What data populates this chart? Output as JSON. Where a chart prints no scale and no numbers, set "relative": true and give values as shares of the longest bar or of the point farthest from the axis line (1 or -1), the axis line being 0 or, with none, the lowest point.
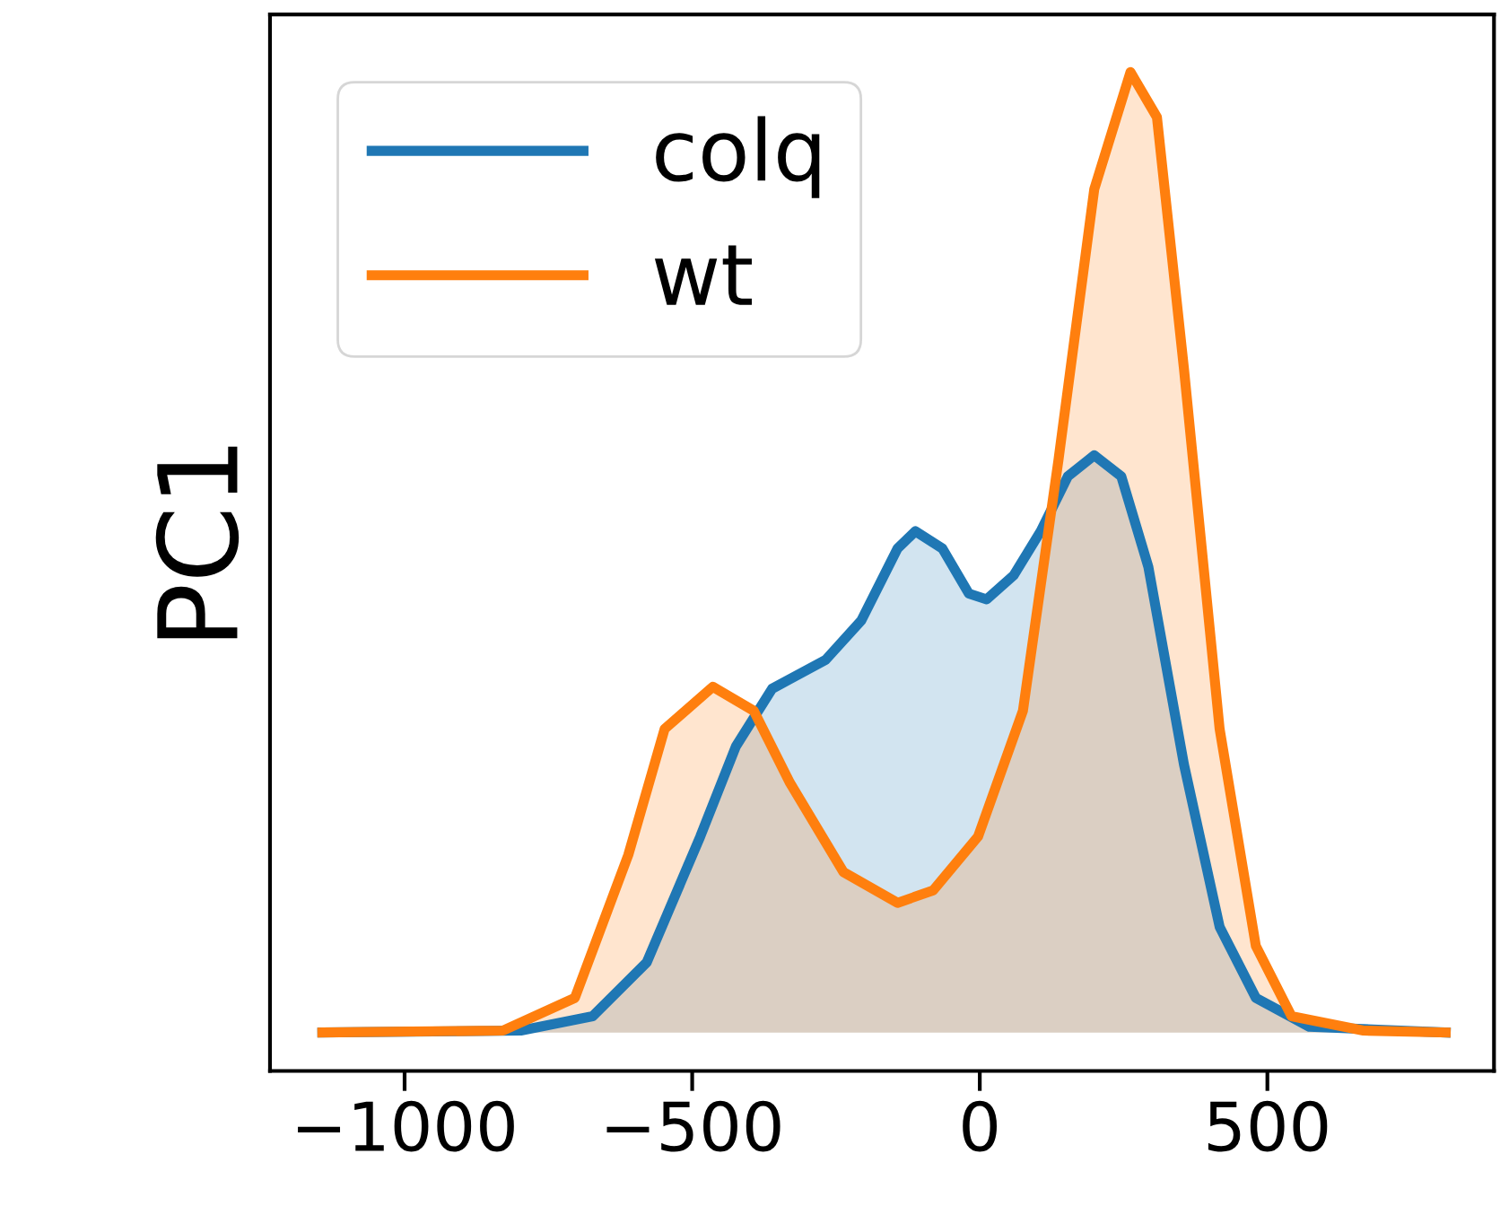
{
  "chart_data": {
    "type": "area",
    "ylabel": "PC1",
    "relative": true,
    "tick_labels": "x",
    "legend": "top left",
    "grid": false,
    "xlim": [
      -1234,
      894
    ],
    "xticks": [
      {
        "value": -1000,
        "label": "−1000"
      },
      {
        "value": -500,
        "label": "−500"
      },
      0,
      500
    ],
    "series": [
      {
        "name": "colq",
        "color": "#1f77b4",
        "x": [
          -1143,
          -798,
          -673,
          -579,
          -486,
          -424,
          -361,
          -268,
          -206,
          -143,
          -112,
          -65,
          -19,
          12,
          59,
          106,
          153,
          199,
          246,
          293,
          355,
          417,
          480,
          573,
          810
        ],
        "values": [
          0,
          0.002,
          0.017,
          0.073,
          0.204,
          0.298,
          0.358,
          0.388,
          0.429,
          0.504,
          0.522,
          0.504,
          0.457,
          0.451,
          0.476,
          0.522,
          0.579,
          0.601,
          0.579,
          0.485,
          0.279,
          0.11,
          0.036,
          0.006,
          0
        ]
      },
      {
        "name": "wt",
        "color": "#ff7f0e",
        "x": [
          -1143,
          -829,
          -704,
          -611,
          -548,
          -464,
          -393,
          -330,
          -237,
          -143,
          -81,
          -3,
          75,
          137,
          199,
          262,
          308,
          355,
          417,
          480,
          542,
          667,
          810
        ],
        "values": [
          0,
          0.002,
          0.036,
          0.185,
          0.316,
          0.36,
          0.335,
          0.26,
          0.167,
          0.135,
          0.148,
          0.204,
          0.335,
          0.597,
          0.878,
          1,
          0.953,
          0.691,
          0.316,
          0.09,
          0.017,
          0.002,
          0
        ]
      }
    ]
  }
}
